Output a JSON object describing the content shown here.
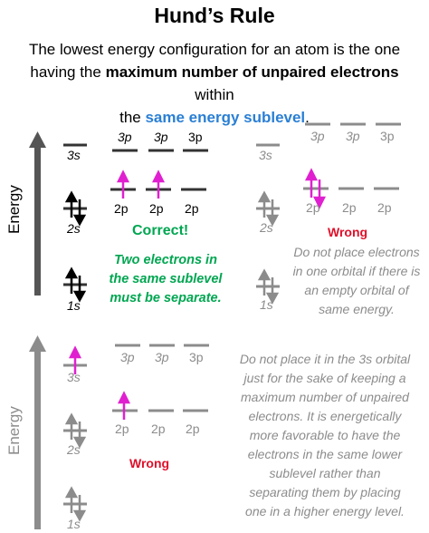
{
  "header": {
    "title": "Hund’s Rule",
    "intro_line1": "The lowest energy configuration for an atom is the one",
    "intro_line2_pre": "having the ",
    "intro_line2_bold": "maximum number of unpaired electrons",
    "intro_line2_post": " within",
    "intro_line3_pre": "the ",
    "intro_line3_blue": "same energy sublevel",
    "intro_line3_post": "."
  },
  "axis_label": "Energy",
  "panel_correct": {
    "label_3s": "3s",
    "label_2s": "2s",
    "label_1s": "1s",
    "label_3p": [
      "3p",
      "3p",
      "3p"
    ],
    "label_2p": [
      "2p",
      "2p",
      "2p"
    ],
    "verdict": "Correct!",
    "note": [
      "Two electrons in",
      "the same sublevel",
      "must be separate."
    ]
  },
  "panel_wrong_pair": {
    "label_3s": "3s",
    "label_2s": "2s",
    "label_1s": "1s",
    "label_3p": [
      "3p",
      "3p",
      "3p"
    ],
    "label_2p": [
      "2p",
      "2p",
      "2p"
    ],
    "verdict": "Wrong",
    "note": [
      "Do not place electrons",
      "in one orbital if there is",
      "an empty orbital of",
      "same energy."
    ]
  },
  "panel_wrong_3s": {
    "label_3s": "3s",
    "label_2s": "2s",
    "label_1s": "1s",
    "label_3p": [
      "3p",
      "3p",
      "3p"
    ],
    "label_2p": [
      "2p",
      "2p",
      "2p"
    ],
    "verdict": "Wrong",
    "note": [
      "Do not place it in the 3s orbital",
      "just for the sake of keeping a",
      "maximum number of unpaired",
      "electrons. It is energetically",
      "more favorable to have the",
      "electrons in the same lower",
      "sublevel rather than",
      "separating them by placing",
      "one in a higher energy level."
    ]
  },
  "colors": {
    "black": "#000000",
    "grey": "#8c8c8c",
    "magenta": "#e020d0",
    "green": "#00a651",
    "red": "#e0102a",
    "blue": "#2a7fd4"
  }
}
